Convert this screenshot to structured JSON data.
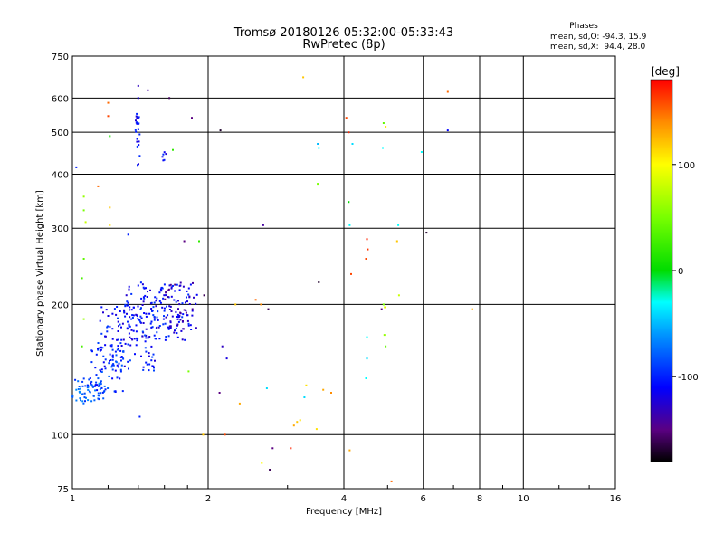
{
  "chart_data": {
    "type": "scatter",
    "title": "Tromsø 20180126 05:32:00-05:33:43",
    "subtitle": "RwPretec (8p)",
    "xlabel": "Frequency [MHz]",
    "ylabel": "Stationary phase Virtual Height [km]",
    "x_scale": "log",
    "y_scale": "log",
    "xlim": [
      1,
      16
    ],
    "ylim": [
      75,
      750
    ],
    "x_ticks": [
      1,
      2,
      4,
      6,
      8,
      10,
      16
    ],
    "y_ticks": [
      75,
      100,
      200,
      300,
      400,
      500,
      600,
      750
    ],
    "grid": true,
    "stats": {
      "header": "Phases",
      "line_o": "mean, sd,O: -94.3, 15.9",
      "line_x": "mean, sd,X:  94.4, 28.0"
    },
    "colorbar": {
      "label": "[deg]",
      "range": [
        -180,
        180
      ],
      "ticks": [
        100,
        0,
        -100
      ],
      "tick_labels": [
        "100",
        "0",
        "-100"
      ]
    },
    "clusters": [
      {
        "x": [
          1.0,
          1.18
        ],
        "y": [
          118,
          135
        ],
        "phase": -80,
        "count": 60
      },
      {
        "x": [
          1.08,
          1.3
        ],
        "y": [
          125,
          165
        ],
        "phase": -95,
        "count": 70
      },
      {
        "x": [
          1.15,
          1.55
        ],
        "y": [
          140,
          200
        ],
        "phase": -105,
        "count": 120
      },
      {
        "x": [
          1.3,
          1.85
        ],
        "y": [
          165,
          225
        ],
        "phase": -110,
        "count": 160
      },
      {
        "x": [
          1.6,
          1.9
        ],
        "y": [
          175,
          225
        ],
        "phase": -130,
        "count": 40
      },
      {
        "x": [
          1.38,
          1.41
        ],
        "y": [
          420,
          560
        ],
        "phase": -108,
        "count": 25
      },
      {
        "x": [
          1.58,
          1.62
        ],
        "y": [
          430,
          450
        ],
        "phase": -108,
        "count": 6
      }
    ],
    "points": [
      {
        "x": 1.02,
        "y": 415,
        "phase": -100
      },
      {
        "x": 1.06,
        "y": 355,
        "phase": 60
      },
      {
        "x": 1.06,
        "y": 330,
        "phase": 50
      },
      {
        "x": 1.07,
        "y": 310,
        "phase": 80
      },
      {
        "x": 1.06,
        "y": 255,
        "phase": 40
      },
      {
        "x": 1.05,
        "y": 230,
        "phase": 30
      },
      {
        "x": 1.06,
        "y": 185,
        "phase": 60
      },
      {
        "x": 1.05,
        "y": 160,
        "phase": 30
      },
      {
        "x": 1.14,
        "y": 375,
        "phase": 150
      },
      {
        "x": 1.2,
        "y": 585,
        "phase": 150
      },
      {
        "x": 1.2,
        "y": 545,
        "phase": 160
      },
      {
        "x": 1.21,
        "y": 490,
        "phase": 10
      },
      {
        "x": 1.21,
        "y": 335,
        "phase": 120
      },
      {
        "x": 1.21,
        "y": 305,
        "phase": 110
      },
      {
        "x": 1.33,
        "y": 290,
        "phase": -100
      },
      {
        "x": 1.4,
        "y": 640,
        "phase": -130
      },
      {
        "x": 1.4,
        "y": 600,
        "phase": -120
      },
      {
        "x": 1.47,
        "y": 625,
        "phase": -140
      },
      {
        "x": 1.64,
        "y": 600,
        "phase": -160
      },
      {
        "x": 1.67,
        "y": 455,
        "phase": 20
      },
      {
        "x": 1.77,
        "y": 280,
        "phase": -150
      },
      {
        "x": 1.91,
        "y": 280,
        "phase": 20
      },
      {
        "x": 1.84,
        "y": 540,
        "phase": -150
      },
      {
        "x": 1.96,
        "y": 210,
        "phase": -160
      },
      {
        "x": 1.81,
        "y": 140,
        "phase": 50
      },
      {
        "x": 1.41,
        "y": 110,
        "phase": -100
      },
      {
        "x": 1.95,
        "y": 100,
        "phase": 120
      },
      {
        "x": 2.13,
        "y": 505,
        "phase": -170
      },
      {
        "x": 2.15,
        "y": 160,
        "phase": -130
      },
      {
        "x": 2.2,
        "y": 150,
        "phase": -120
      },
      {
        "x": 2.12,
        "y": 125,
        "phase": -150
      },
      {
        "x": 2.18,
        "y": 100,
        "phase": 160
      },
      {
        "x": 2.3,
        "y": 200,
        "phase": 120
      },
      {
        "x": 2.35,
        "y": 118,
        "phase": 130
      },
      {
        "x": 2.55,
        "y": 205,
        "phase": 150
      },
      {
        "x": 2.62,
        "y": 200,
        "phase": 140
      },
      {
        "x": 2.65,
        "y": 305,
        "phase": -140
      },
      {
        "x": 2.72,
        "y": 195,
        "phase": -160
      },
      {
        "x": 2.7,
        "y": 128,
        "phase": -40
      },
      {
        "x": 2.63,
        "y": 86,
        "phase": 100
      },
      {
        "x": 2.78,
        "y": 93,
        "phase": -150
      },
      {
        "x": 2.74,
        "y": 83,
        "phase": -160
      },
      {
        "x": 3.05,
        "y": 93,
        "phase": 170
      },
      {
        "x": 3.1,
        "y": 105,
        "phase": 130
      },
      {
        "x": 3.15,
        "y": 107,
        "phase": 120
      },
      {
        "x": 3.2,
        "y": 108,
        "phase": 110
      },
      {
        "x": 3.25,
        "y": 670,
        "phase": 120
      },
      {
        "x": 3.3,
        "y": 130,
        "phase": 110
      },
      {
        "x": 3.27,
        "y": 122,
        "phase": -40
      },
      {
        "x": 3.5,
        "y": 470,
        "phase": -50
      },
      {
        "x": 3.52,
        "y": 460,
        "phase": -30
      },
      {
        "x": 3.5,
        "y": 380,
        "phase": 50
      },
      {
        "x": 3.52,
        "y": 225,
        "phase": -170
      },
      {
        "x": 3.6,
        "y": 127,
        "phase": 130
      },
      {
        "x": 3.75,
        "y": 125,
        "phase": 140
      },
      {
        "x": 3.48,
        "y": 103,
        "phase": 110
      },
      {
        "x": 4.05,
        "y": 540,
        "phase": 160
      },
      {
        "x": 4.1,
        "y": 500,
        "phase": 170
      },
      {
        "x": 4.18,
        "y": 470,
        "phase": -40
      },
      {
        "x": 4.1,
        "y": 345,
        "phase": 0
      },
      {
        "x": 4.12,
        "y": 305,
        "phase": -30
      },
      {
        "x": 4.15,
        "y": 235,
        "phase": 160
      },
      {
        "x": 4.12,
        "y": 92,
        "phase": 130
      },
      {
        "x": 4.5,
        "y": 283,
        "phase": 170
      },
      {
        "x": 4.52,
        "y": 268,
        "phase": 165
      },
      {
        "x": 4.48,
        "y": 255,
        "phase": 160
      },
      {
        "x": 4.5,
        "y": 168,
        "phase": -30
      },
      {
        "x": 4.5,
        "y": 150,
        "phase": -40
      },
      {
        "x": 4.48,
        "y": 135,
        "phase": -30
      },
      {
        "x": 4.9,
        "y": 525,
        "phase": 40
      },
      {
        "x": 4.95,
        "y": 515,
        "phase": 110
      },
      {
        "x": 4.88,
        "y": 460,
        "phase": -30
      },
      {
        "x": 4.85,
        "y": 195,
        "phase": -150
      },
      {
        "x": 4.9,
        "y": 200,
        "phase": 50
      },
      {
        "x": 4.92,
        "y": 170,
        "phase": 60
      },
      {
        "x": 4.95,
        "y": 160,
        "phase": 40
      },
      {
        "x": 4.93,
        "y": 197,
        "phase": 90
      },
      {
        "x": 5.1,
        "y": 78,
        "phase": 150
      },
      {
        "x": 5.28,
        "y": 305,
        "phase": -30
      },
      {
        "x": 5.25,
        "y": 280,
        "phase": 120
      },
      {
        "x": 5.3,
        "y": 210,
        "phase": 80
      },
      {
        "x": 5.95,
        "y": 450,
        "phase": -30
      },
      {
        "x": 6.1,
        "y": 293,
        "phase": -170
      },
      {
        "x": 6.8,
        "y": 620,
        "phase": 150
      },
      {
        "x": 6.8,
        "y": 505,
        "phase": -110
      },
      {
        "x": 7.7,
        "y": 195,
        "phase": 130
      }
    ]
  }
}
